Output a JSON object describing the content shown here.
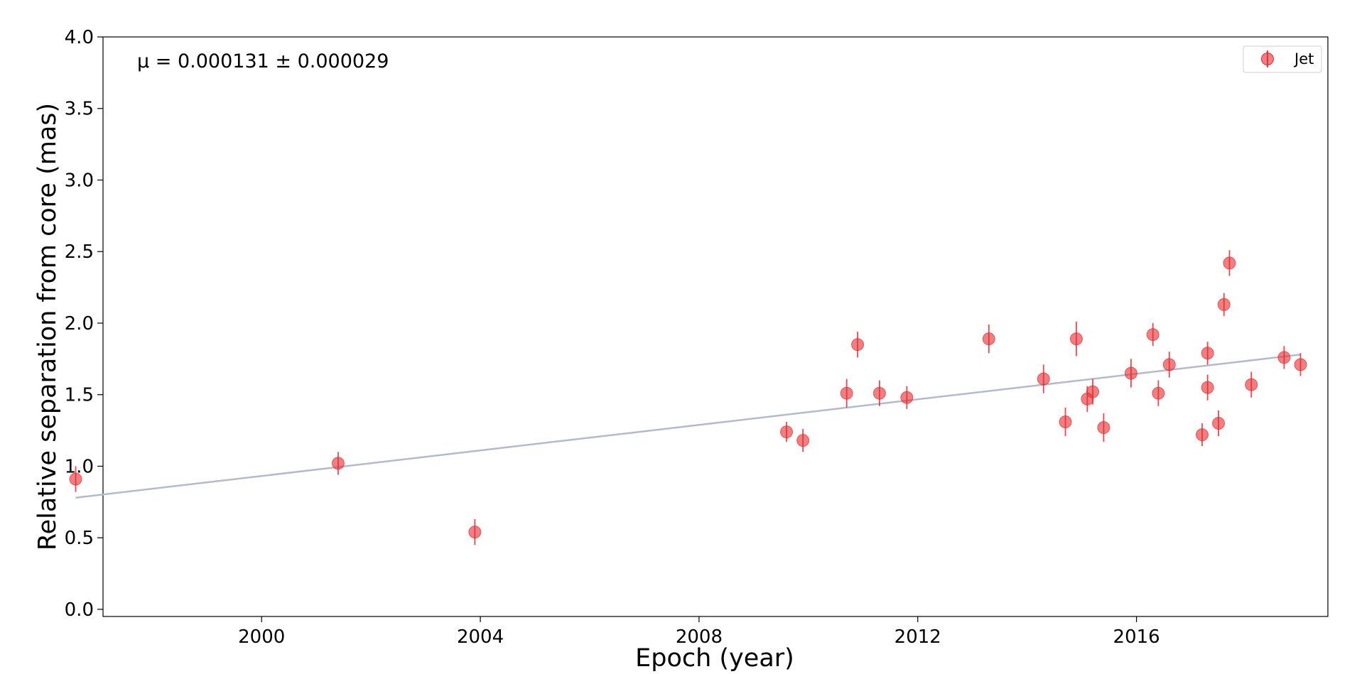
{
  "chart_data": {
    "type": "scatter",
    "xlabel": "Epoch (year)",
    "ylabel": "Relative separation from core (mas)",
    "xlim": [
      1997.1,
      2019.5
    ],
    "ylim": [
      -0.05,
      4.0
    ],
    "xticks": [
      2000,
      2004,
      2008,
      2012,
      2016
    ],
    "yticks": [
      0.0,
      0.5,
      1.0,
      1.5,
      2.0,
      2.5,
      3.0,
      3.5,
      4.0
    ],
    "x_tick_labels": [
      "2000",
      "2004",
      "2008",
      "2012",
      "2016"
    ],
    "y_tick_labels": [
      "0.0",
      "0.5",
      "1.0",
      "1.5",
      "2.0",
      "2.5",
      "3.0",
      "3.5",
      "4.0"
    ],
    "annotation": "μ = 0.000131 ± 0.000029",
    "grid": false,
    "legend": {
      "position": "top-right",
      "entries": [
        "Jet"
      ]
    },
    "colors": {
      "points": "#e8292e",
      "fit_line": "#b4bacd",
      "axes": "#000000"
    },
    "series": [
      {
        "name": "Jet",
        "x": [
          1996.6,
          2001.4,
          2003.9,
          2009.6,
          2009.9,
          2010.7,
          2010.9,
          2011.3,
          2011.8,
          2013.3,
          2014.3,
          2014.7,
          2014.9,
          2015.1,
          2015.2,
          2015.4,
          2015.9,
          2016.3,
          2016.4,
          2016.6,
          2017.2,
          2017.3,
          2017.3,
          2017.5,
          2017.6,
          2017.7,
          2018.1,
          2018.7,
          2019.0
        ],
        "y": [
          0.91,
          1.02,
          0.54,
          1.24,
          1.18,
          1.51,
          1.85,
          1.51,
          1.48,
          1.89,
          1.61,
          1.31,
          1.89,
          1.47,
          1.52,
          1.27,
          1.65,
          1.92,
          1.51,
          1.71,
          1.22,
          1.79,
          1.55,
          1.3,
          2.13,
          2.42,
          1.57,
          1.76,
          1.71
        ],
        "yerr": [
          0.09,
          0.08,
          0.09,
          0.07,
          0.08,
          0.1,
          0.09,
          0.09,
          0.08,
          0.1,
          0.1,
          0.1,
          0.12,
          0.09,
          0.09,
          0.1,
          0.1,
          0.08,
          0.09,
          0.09,
          0.08,
          0.08,
          0.09,
          0.09,
          0.08,
          0.09,
          0.09,
          0.08,
          0.08
        ]
      }
    ],
    "fit": {
      "x": [
        1996.6,
        2019.0
      ],
      "y": [
        0.78,
        1.78
      ]
    }
  }
}
